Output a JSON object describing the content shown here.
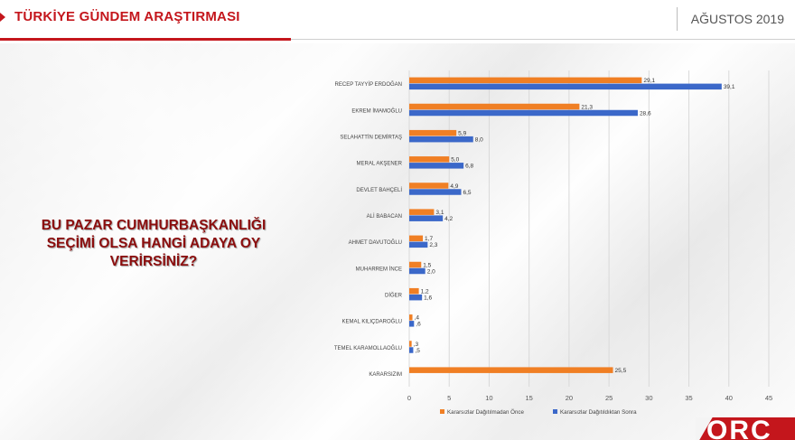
{
  "header": {
    "title": "TÜRKİYE GÜNDEM ARAŞTIRMASI",
    "date": "AĞUSTOS 2019"
  },
  "question": {
    "line1": "BU PAZAR CUMHURBAŞKANLIĞI",
    "line2": "SEÇİMİ OLSA HANGİ ADAYA OY",
    "line3": "VERİRSİNİZ?"
  },
  "logo": {
    "text": "ORC"
  },
  "colors": {
    "before": "#f07f24",
    "after": "#3b68c9",
    "accent": "#c4161c"
  },
  "chart_data": {
    "type": "bar",
    "orientation": "horizontal",
    "categories": [
      "RECEP TAYYİP ERDOĞAN",
      "EKREM İMAMOĞLU",
      "SELAHATTİN DEMİRTAŞ",
      "MERAL AKŞENER",
      "DEVLET BAHÇELİ",
      "ALİ BABACAN",
      "AHMET DAVUTOĞLU",
      "MUHARREM İNCE",
      "DİĞER",
      "KEMAL KILIÇDAROĞLU",
      "TEMEL KARAMOLLAOĞLU",
      "KARARSIZIM"
    ],
    "series": [
      {
        "name": "Kararsızlar Dağıtılmadan Önce",
        "values": [
          29.1,
          21.3,
          5.9,
          5.0,
          4.9,
          3.1,
          1.7,
          1.5,
          1.2,
          0.4,
          0.3,
          25.5
        ],
        "labels": [
          "29,1",
          "21,3",
          "5,9",
          "5,0",
          "4,9",
          "3,1",
          "1,7",
          "1,5",
          "1,2",
          ",4",
          ",3",
          "25,5"
        ]
      },
      {
        "name": "Kararsızlar Dağıtıldıktan Sonra",
        "values": [
          39.1,
          28.6,
          8.0,
          6.8,
          6.5,
          4.2,
          2.3,
          2.0,
          1.6,
          0.6,
          0.5,
          null
        ],
        "labels": [
          "39,1",
          "28,6",
          "8,0",
          "6,8",
          "6,5",
          "4,2",
          "2,3",
          "2,0",
          "1,6",
          ",6",
          ",5",
          ""
        ]
      }
    ],
    "xlim": [
      0,
      45
    ],
    "xticks": [
      "0",
      "5",
      "10",
      "15",
      "20",
      "25",
      "30",
      "35",
      "40",
      "45"
    ],
    "grid": true,
    "legend_position": "bottom"
  }
}
